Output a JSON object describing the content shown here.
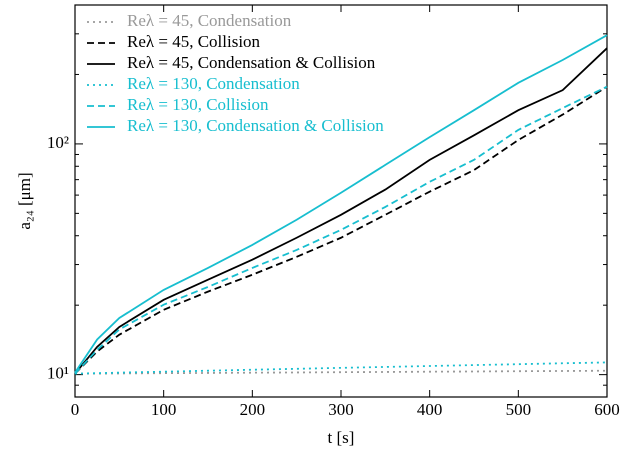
{
  "chart_data": {
    "type": "line",
    "xlabel": "t [s]",
    "ylabel": "a₂₄ [μm]",
    "x": [
      0,
      25,
      50,
      100,
      150,
      200,
      250,
      300,
      350,
      400,
      450,
      500,
      550,
      600
    ],
    "xlim": [
      0,
      600
    ],
    "xticks": [
      0,
      100,
      200,
      300,
      400,
      500,
      600
    ],
    "ylim": [
      8,
      400
    ],
    "yscale": "log",
    "yticks": [
      {
        "value": 10,
        "label": "10¹"
      },
      {
        "value": 100,
        "label": "10²"
      }
    ],
    "legend": "upper left",
    "series": [
      {
        "name": "Reλ = 45, Condensation",
        "color": "#999999",
        "dash": "dotted",
        "values": [
          10.1,
          10.1,
          10.12,
          10.15,
          10.17,
          10.2,
          10.22,
          10.25,
          10.27,
          10.3,
          10.32,
          10.35,
          10.37,
          10.4
        ]
      },
      {
        "name": "Reλ = 45, Collision",
        "color": "#000000",
        "dash": "dashed",
        "values": [
          10.1,
          12.6,
          14.9,
          19.1,
          22.9,
          27.1,
          32.4,
          39.2,
          49.3,
          62.1,
          77.0,
          104,
          134,
          177
        ]
      },
      {
        "name": "Reλ = 45, Condensation & Collision",
        "color": "#000000",
        "dash": "solid",
        "values": [
          10.1,
          13.2,
          16.1,
          21.1,
          25.8,
          31.5,
          39.2,
          49.3,
          63.4,
          85.3,
          109,
          140,
          171,
          260
        ]
      },
      {
        "name": "Reλ = 130, Condensation",
        "color": "#17becf",
        "dash": "dotted",
        "values": [
          10.1,
          10.15,
          10.2,
          10.3,
          10.4,
          10.5,
          10.6,
          10.7,
          10.8,
          10.9,
          11.0,
          11.1,
          11.2,
          11.3
        ]
      },
      {
        "name": "Reλ = 130, Collision",
        "color": "#17becf",
        "dash": "dashed",
        "values": [
          10.1,
          12.8,
          15.7,
          20.1,
          24.0,
          29.0,
          34.7,
          42.4,
          53.3,
          68.5,
          85.3,
          115,
          143,
          177
        ]
      },
      {
        "name": "Reλ = 130, Condensation & Collision",
        "color": "#17becf",
        "dash": "solid",
        "values": [
          10.2,
          14.2,
          17.6,
          23.3,
          29.0,
          36.5,
          46.9,
          61.4,
          81.1,
          107,
          140,
          184,
          231,
          296
        ]
      }
    ]
  }
}
